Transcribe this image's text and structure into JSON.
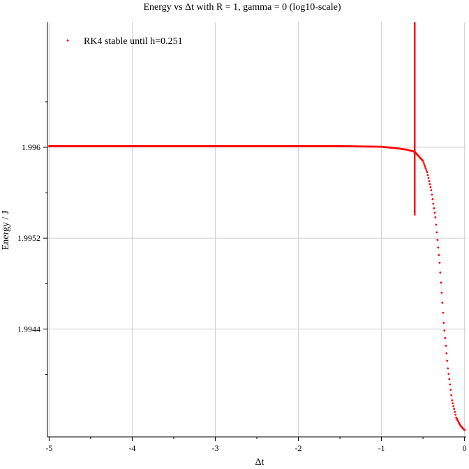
{
  "chart_data": {
    "type": "scatter",
    "title": "Energy vs Δt with R = 1, gamma = 0 (log10-scale)",
    "xlabel": "Δt",
    "ylabel": "Energy / J",
    "xlim": [
      -5.02,
      0.02
    ],
    "ylim": [
      1.99345,
      1.9971
    ],
    "x_ticks": [
      -5,
      -4,
      -3,
      -2,
      -1,
      0
    ],
    "x_tick_labels": [
      "-5",
      "-4",
      "-3",
      "-2",
      "-1",
      "0"
    ],
    "y_ticks": [
      1.9944,
      1.9952,
      1.996
    ],
    "y_tick_labels": [
      "1.9944",
      "1.9952",
      "1.996"
    ],
    "grid": true,
    "legend_position": "top-left",
    "series": [
      {
        "name": "RK4 stable until h=0.251",
        "color": "#ff0000",
        "marker": "dot",
        "x_start": -5.0,
        "x_end": 0.0,
        "points": 600,
        "plateau_value": 1.99601,
        "curve_samples": {
          "x": [
            -5.0,
            -1.5,
            -1.0,
            -0.8,
            -0.7,
            -0.6,
            -0.5,
            -0.45,
            -0.4,
            -0.35,
            -0.3,
            -0.25,
            -0.2,
            -0.15,
            -0.1,
            -0.05,
            0.0
          ],
          "y": [
            1.99601,
            1.99601,
            1.996005,
            1.99599,
            1.99598,
            1.99596,
            1.99588,
            1.99578,
            1.99562,
            1.99538,
            1.99498,
            1.99445,
            1.99405,
            1.99377,
            1.99362,
            1.99355,
            1.99351
          ]
        }
      }
    ],
    "annotations": [
      {
        "type": "vline",
        "x": -0.6,
        "y_from": 1.9954,
        "y_to": 1.9971,
        "color": "#ff0000"
      }
    ]
  }
}
